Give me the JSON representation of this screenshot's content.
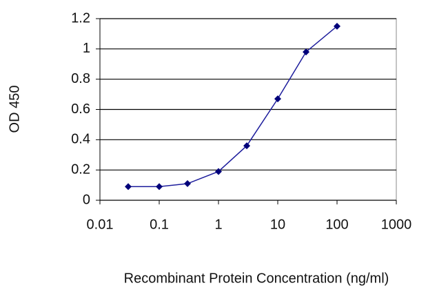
{
  "chart_data": {
    "type": "line",
    "x_label": "Recombinant Protein Concentration (ng/ml)",
    "y_label": "OD 450",
    "x": [
      0.03,
      0.1,
      0.3,
      1,
      3,
      10,
      30,
      100
    ],
    "values": [
      0.09,
      0.09,
      0.11,
      0.19,
      0.36,
      0.67,
      0.98,
      1.15
    ],
    "color": "#1c1c9c",
    "x_log": true,
    "xlim": [
      0.01,
      1000
    ],
    "xticks": [
      0.01,
      0.1,
      1,
      10,
      100,
      1000
    ],
    "ylim": [
      0,
      1.2
    ],
    "yticks": [
      0,
      0.2,
      0.4,
      0.6,
      0.8,
      1,
      1.2
    ],
    "grid": true
  }
}
